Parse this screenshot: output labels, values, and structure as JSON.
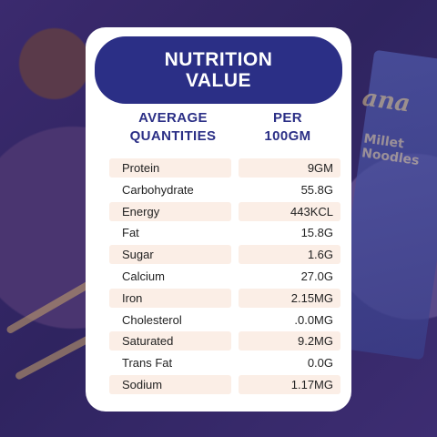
{
  "header": {
    "title": "NUTRITION VALUE"
  },
  "columns": {
    "left": "AVERAGE QUANTITIES",
    "right": "PER 100GM"
  },
  "rows": [
    {
      "name": "Protein",
      "value": "9GM"
    },
    {
      "name": "Carbohydrate",
      "value": "55.8G"
    },
    {
      "name": "Energy",
      "value": "443KCL"
    },
    {
      "name": "Fat",
      "value": "15.8G"
    },
    {
      "name": "Sugar",
      "value": "1.6G"
    },
    {
      "name": "Calcium",
      "value": "27.0G"
    },
    {
      "name": "Iron",
      "value": "2.15MG"
    },
    {
      "name": "Cholesterol",
      "value": ".0.0MG"
    },
    {
      "name": "Saturated",
      "value": "9.2MG"
    },
    {
      "name": "Trans Fat",
      "value": "0.0G"
    },
    {
      "name": "Sodium",
      "value": "1.17MG"
    }
  ],
  "background": {
    "package_brand": "ana",
    "package_product": "Millet Noodles"
  },
  "colors": {
    "header_bg": "#2b2f86",
    "heading_text": "#2b2f86",
    "row_shade": "#fbeee6",
    "card_bg": "#ffffff"
  }
}
